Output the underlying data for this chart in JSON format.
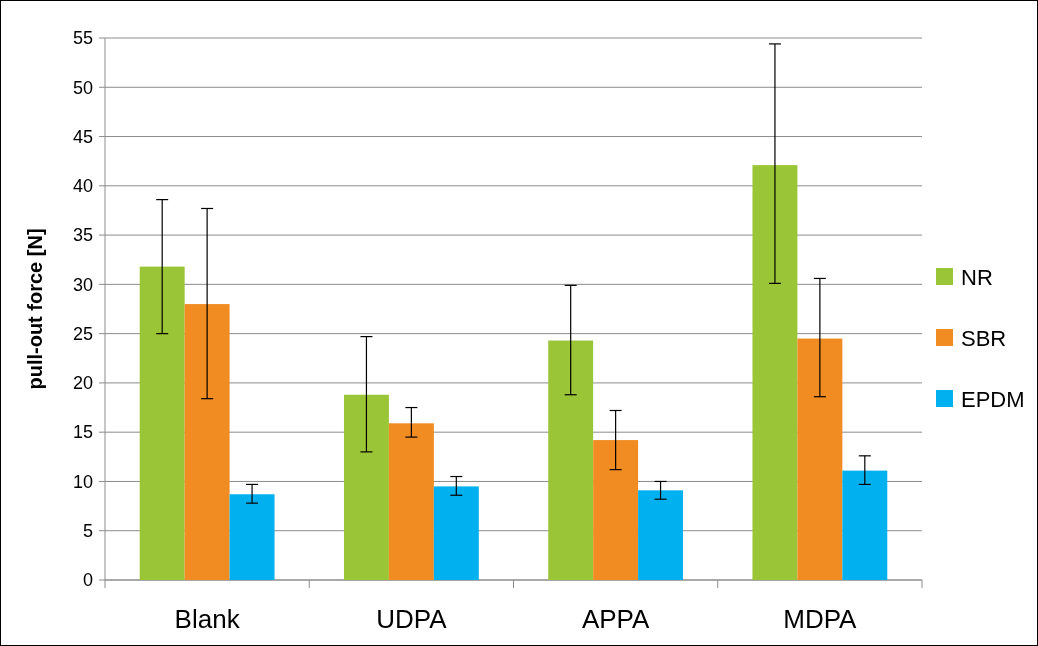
{
  "chart_data": {
    "type": "bar",
    "ylabel": "pull-out force [N]",
    "categories": [
      "Blank",
      "UDPA",
      "APPA",
      "MDPA"
    ],
    "series": [
      {
        "name": "NR",
        "color": "#9ac536",
        "values": [
          31.8,
          18.8,
          24.3,
          42.1
        ],
        "errors": [
          [
            25.0,
            38.6
          ],
          [
            13.0,
            24.7
          ],
          [
            18.8,
            29.9
          ],
          [
            30.1,
            54.4
          ]
        ]
      },
      {
        "name": "SBR",
        "color": "#f08c21",
        "values": [
          28.0,
          15.9,
          14.2,
          24.5
        ],
        "errors": [
          [
            18.4,
            37.7
          ],
          [
            14.5,
            17.5
          ],
          [
            11.2,
            17.2
          ],
          [
            18.6,
            30.6
          ]
        ]
      },
      {
        "name": "EPDM",
        "color": "#00b0ef",
        "values": [
          8.7,
          9.5,
          9.1,
          11.1
        ],
        "errors": [
          [
            7.8,
            9.7
          ],
          [
            8.6,
            10.5
          ],
          [
            8.2,
            10.0
          ],
          [
            9.7,
            12.6
          ]
        ]
      }
    ],
    "ylim": [
      0,
      55
    ],
    "yticks": [
      0,
      5,
      10,
      15,
      20,
      25,
      30,
      35,
      40,
      45,
      50,
      55
    ],
    "grid": "y",
    "legend": "right"
  }
}
